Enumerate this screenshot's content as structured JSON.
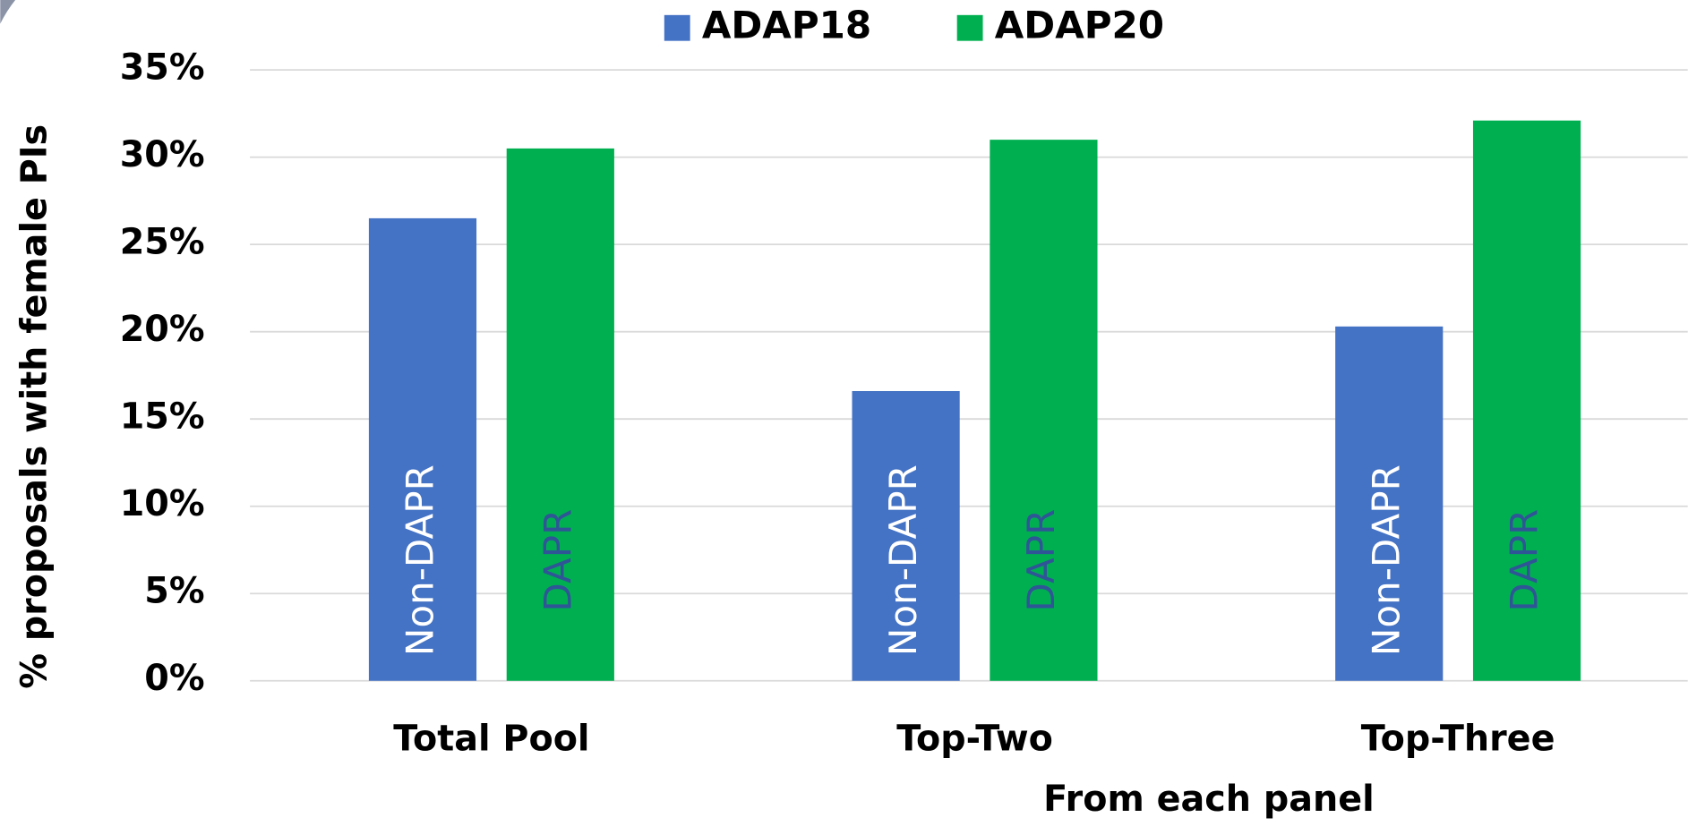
{
  "chart_data": {
    "type": "bar",
    "x_label": "From each panel",
    "y_label": "% proposals with female PIs",
    "categories": [
      "Total Pool",
      "Top-Two",
      "Top-Three"
    ],
    "series": [
      {
        "name": "ADAP18",
        "color": "#4472c4",
        "label_color": "#ffffff",
        "bar_labels": [
          "Non-DAPR",
          "Non-DAPR",
          "Non-DAPR"
        ],
        "values": [
          26.5,
          16.6,
          20.3
        ]
      },
      {
        "name": "ADAP20",
        "color": "#00b050",
        "label_color": "#2f5597",
        "bar_labels": [
          "DAPR",
          "DAPR",
          "DAPR"
        ],
        "values": [
          30.5,
          31.0,
          32.1
        ]
      }
    ],
    "ylim": [
      0,
      35
    ],
    "yticks": [
      {
        "value": 0,
        "label": "0%"
      },
      {
        "value": 5,
        "label": "5%"
      },
      {
        "value": 10,
        "label": "10%"
      },
      {
        "value": 15,
        "label": "15%"
      },
      {
        "value": 20,
        "label": "20%"
      },
      {
        "value": 25,
        "label": "25%"
      },
      {
        "value": 30,
        "label": "30%"
      },
      {
        "value": 35,
        "label": "35%"
      }
    ],
    "grid": true,
    "legend": "top"
  }
}
